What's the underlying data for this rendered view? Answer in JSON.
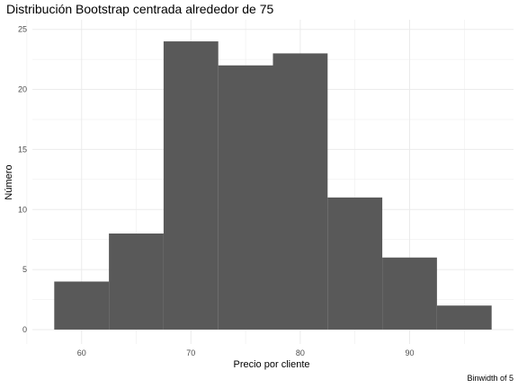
{
  "chart_data": {
    "type": "bar",
    "title": "Distribución Bootstrap centrada alrededor de 75",
    "xlabel": "Precio por cliente",
    "ylabel": "Número",
    "caption": "Binwidth of 5",
    "bins": [
      {
        "x0": 57.5,
        "x1": 62.5,
        "count": 4
      },
      {
        "x0": 62.5,
        "x1": 67.5,
        "count": 8
      },
      {
        "x0": 67.5,
        "x1": 72.5,
        "count": 24
      },
      {
        "x0": 72.5,
        "x1": 77.5,
        "count": 22
      },
      {
        "x0": 77.5,
        "x1": 82.5,
        "count": 23
      },
      {
        "x0": 82.5,
        "x1": 87.5,
        "count": 11
      },
      {
        "x0": 87.5,
        "x1": 92.5,
        "count": 6
      },
      {
        "x0": 92.5,
        "x1": 97.5,
        "count": 2
      }
    ],
    "x_ticks": [
      60,
      70,
      80,
      90
    ],
    "y_ticks": [
      0,
      5,
      10,
      15,
      20,
      25
    ],
    "xlim": [
      55.5,
      99.5
    ],
    "ylim": [
      -1.2,
      25.8
    ],
    "bar_color": "#595959",
    "grid": true,
    "grid_color": "#ebebeb"
  }
}
